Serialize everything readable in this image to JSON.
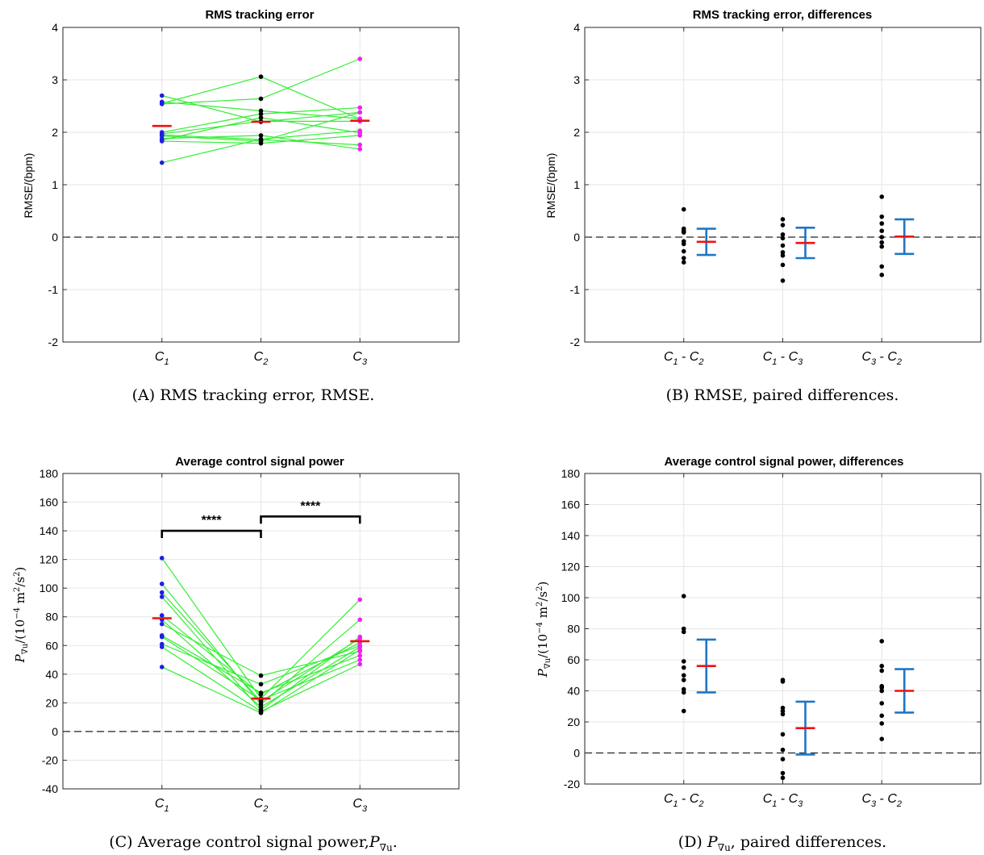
{
  "colors": {
    "green_lines": "#33ee33",
    "c1_points": "#1f1fe0",
    "c2_points": "#000000",
    "c3_points": "#ee22ee",
    "mean_marker": "#ee1111",
    "error_bar": "#1f77c4",
    "grid": "#e6e6e6"
  },
  "chart_data": [
    {
      "id": "A",
      "type": "scatter",
      "title": "RMS tracking error",
      "ylabel": "RMSE/(bpm)",
      "caption": "(A) RMS tracking error, RMSE.",
      "ylim": [
        -2,
        4
      ],
      "yticks": [
        -2,
        -1,
        0,
        1,
        2,
        3,
        4
      ],
      "xlim": [
        0,
        4
      ],
      "grid": true,
      "zero_line": true,
      "categories": [
        {
          "main": "C",
          "sub": "1",
          "x": 1
        },
        {
          "main": "C",
          "sub": "2",
          "x": 2
        },
        {
          "main": "C",
          "sub": "3",
          "x": 3
        }
      ],
      "subjects": [
        [
          2.7,
          2.2,
          2.38
        ],
        [
          2.58,
          2.41,
          2.26
        ],
        [
          2.55,
          3.06,
          2.25
        ],
        [
          2.54,
          2.64,
          3.4
        ],
        [
          2.0,
          2.35,
          2.47
        ],
        [
          1.97,
          2.21,
          2.21
        ],
        [
          1.95,
          1.86,
          1.76
        ],
        [
          1.93,
          1.83,
          2.38
        ],
        [
          1.88,
          1.94,
          1.68
        ],
        [
          1.85,
          2.28,
          1.99
        ],
        [
          1.83,
          1.79,
          1.94
        ],
        [
          1.42,
          1.87,
          2.03
        ]
      ],
      "means": [
        2.12,
        2.2,
        2.22
      ]
    },
    {
      "id": "B",
      "type": "scatter",
      "title": "RMS tracking error, differences",
      "ylabel": "RMSE/(bpm)",
      "caption": "(B) RMSE, paired differences.",
      "ylim": [
        -2,
        4
      ],
      "yticks": [
        -2,
        -1,
        0,
        1,
        2,
        3,
        4
      ],
      "xlim": [
        0,
        4
      ],
      "grid": true,
      "zero_line": true,
      "categories": [
        {
          "a": "C",
          "as": "1",
          "b": "C",
          "bs": "2",
          "x": 1
        },
        {
          "a": "C",
          "as": "1",
          "b": "C",
          "bs": "3",
          "x": 2
        },
        {
          "a": "C",
          "as": "3",
          "b": "C",
          "bs": "2",
          "x": 3
        }
      ],
      "groups": [
        {
          "values": [
            0.53,
            0.16,
            0.12,
            0.09,
            -0.08,
            -0.13,
            -0.27,
            -0.4,
            -0.48
          ],
          "mean": -0.09,
          "ci": [
            -0.34,
            0.16
          ]
        },
        {
          "values": [
            0.34,
            0.23,
            0.05,
            -0.02,
            -0.16,
            -0.29,
            -0.35,
            -0.53,
            -0.83
          ],
          "mean": -0.11,
          "ci": [
            -0.4,
            0.18
          ]
        },
        {
          "values": [
            0.77,
            0.39,
            0.26,
            0.12,
            0.0,
            -0.1,
            -0.18,
            -0.56,
            -0.72
          ],
          "mean": 0.01,
          "ci": [
            -0.32,
            0.34
          ]
        }
      ]
    },
    {
      "id": "C",
      "type": "scatter",
      "title": "Average control signal power",
      "caption": "(C) Average control signal power,",
      "ylim": [
        -40,
        180
      ],
      "yticks": [
        -40,
        -20,
        0,
        20,
        40,
        60,
        80,
        100,
        120,
        140,
        160,
        180
      ],
      "xlim": [
        0,
        4
      ],
      "grid": true,
      "zero_line": true,
      "categories": [
        {
          "main": "C",
          "sub": "1",
          "x": 1
        },
        {
          "main": "C",
          "sub": "2",
          "x": 2
        },
        {
          "main": "C",
          "sub": "3",
          "x": 3
        }
      ],
      "subjects": [
        [
          121,
          23,
          92
        ],
        [
          103,
          19,
          78
        ],
        [
          97,
          21,
          65
        ],
        [
          94,
          15,
          66
        ],
        [
          81,
          26,
          62
        ],
        [
          78,
          17,
          59
        ],
        [
          75,
          39,
          56
        ],
        [
          67,
          27,
          53
        ],
        [
          66,
          22,
          50
        ],
        [
          61,
          33,
          60
        ],
        [
          59,
          14,
          47
        ],
        [
          45,
          13,
          57
        ]
      ],
      "means": [
        79,
        23,
        63
      ],
      "significance": [
        {
          "from": 1,
          "to": 2,
          "y": 140,
          "label": "****"
        },
        {
          "from": 2,
          "to": 3,
          "y": 150,
          "label": "****"
        }
      ]
    },
    {
      "id": "D",
      "type": "scatter",
      "title": "Average control signal power, differences",
      "caption": "paired differences.",
      "ylim": [
        -20,
        180
      ],
      "yticks": [
        -20,
        0,
        20,
        40,
        60,
        80,
        100,
        120,
        140,
        160,
        180
      ],
      "xlim": [
        0,
        4
      ],
      "grid": true,
      "zero_line": true,
      "categories": [
        {
          "a": "C",
          "as": "1",
          "b": "C",
          "bs": "2",
          "x": 1
        },
        {
          "a": "C",
          "as": "1",
          "b": "C",
          "bs": "3",
          "x": 2
        },
        {
          "a": "C",
          "as": "3",
          "b": "C",
          "bs": "2",
          "x": 3
        }
      ],
      "groups": [
        {
          "values": [
            101,
            80,
            78,
            59,
            55,
            50,
            47,
            41,
            39,
            27
          ],
          "mean": 56,
          "ci": [
            39,
            73
          ]
        },
        {
          "values": [
            47,
            46,
            29,
            27,
            25,
            12,
            2,
            -4,
            -13,
            -16
          ],
          "mean": 16,
          "ci": [
            -1,
            33
          ]
        },
        {
          "values": [
            72,
            56,
            53,
            43,
            42,
            40,
            32,
            24,
            19,
            9
          ],
          "mean": 40,
          "ci": [
            26,
            54
          ]
        }
      ]
    }
  ]
}
